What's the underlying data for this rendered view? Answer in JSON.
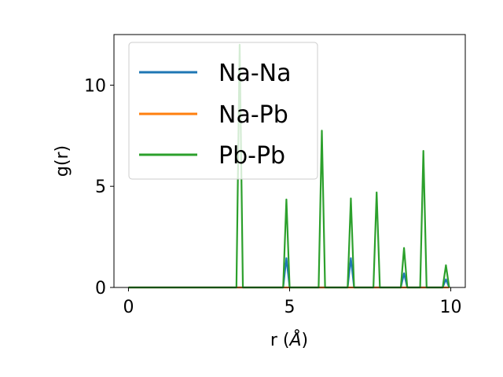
{
  "chart_data": {
    "type": "line",
    "title": "",
    "xlabel_main": "r (",
    "xlabel_symbol": "Å",
    "xlabel_close": ")",
    "ylabel": "g(r)",
    "xlim": [
      -0.45,
      10.45
    ],
    "ylim": [
      0,
      12.5
    ],
    "x_ticks": [
      0,
      5,
      10
    ],
    "x_tick_labels": [
      "0",
      "5",
      "10"
    ],
    "y_ticks": [
      0,
      5,
      10
    ],
    "y_tick_labels": [
      "0",
      "5",
      "10"
    ],
    "grid": false,
    "legend_position": "upper-left",
    "series": [
      {
        "name": "Na-Na",
        "color": "#1f77b4",
        "x": [
          0,
          4.8,
          4.9,
          5.0,
          6.8,
          6.9,
          7.0,
          8.45,
          8.55,
          8.65,
          9.75,
          9.85,
          9.95
        ],
        "y": [
          0,
          0,
          1.45,
          0,
          0,
          1.45,
          0,
          0,
          0.7,
          0,
          0,
          0.4,
          0
        ]
      },
      {
        "name": "Na-Pb",
        "color": "#ff7f0e",
        "x": [
          0,
          9.95
        ],
        "y": [
          0,
          0
        ]
      },
      {
        "name": "Pb-Pb",
        "color": "#2ca02c",
        "x": [
          0,
          3.35,
          3.45,
          3.55,
          4.8,
          4.9,
          5.0,
          5.9,
          6.0,
          6.1,
          6.8,
          6.9,
          7.0,
          7.6,
          7.7,
          7.8,
          8.45,
          8.55,
          8.65,
          9.05,
          9.15,
          9.25,
          9.75,
          9.85,
          9.95
        ],
        "y": [
          0,
          0,
          12.0,
          0,
          0,
          4.35,
          0,
          0,
          7.75,
          0,
          0,
          4.4,
          0,
          0,
          4.7,
          0,
          0,
          1.95,
          0,
          0,
          6.75,
          0,
          0,
          1.1,
          0
        ]
      }
    ]
  }
}
